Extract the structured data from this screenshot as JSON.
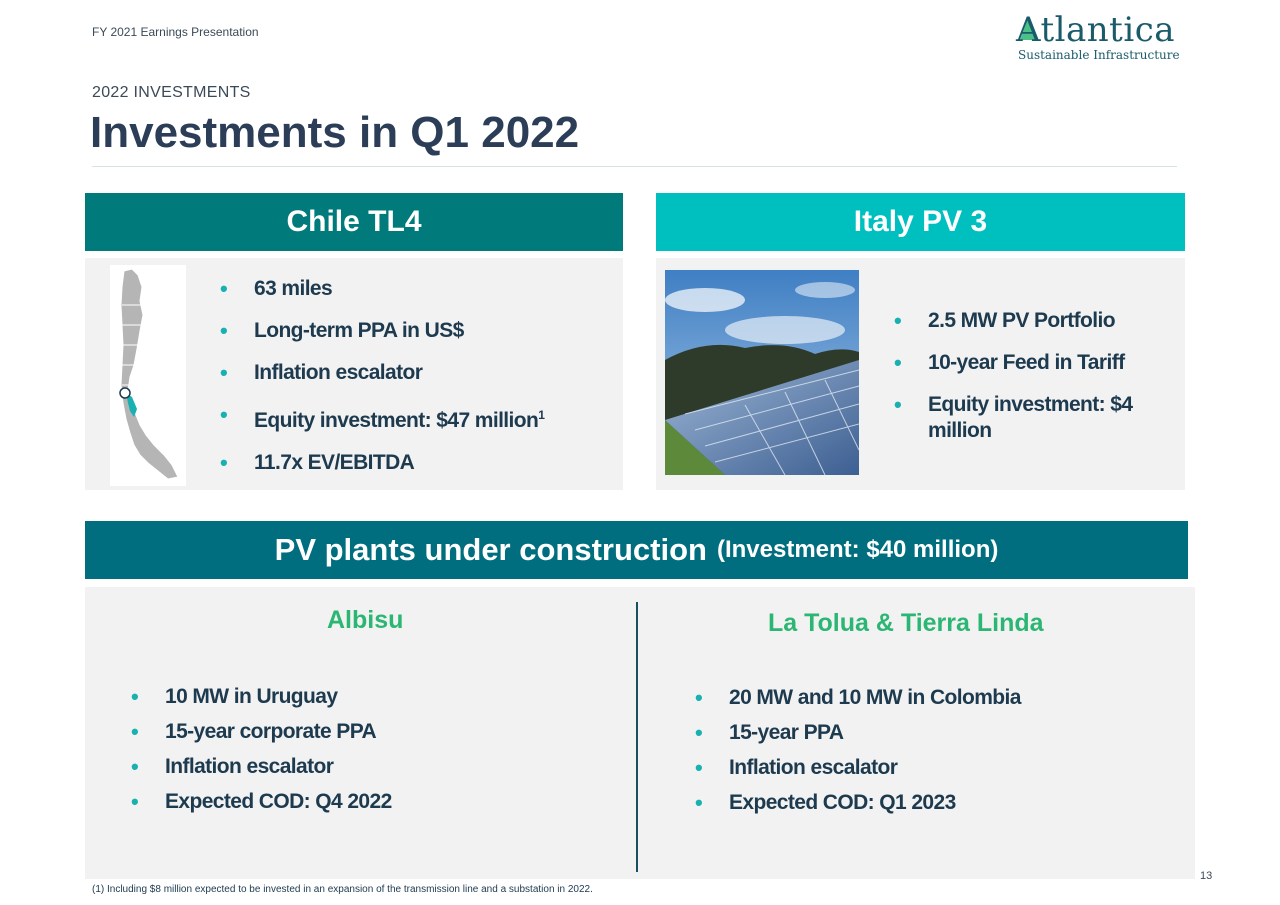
{
  "header": {
    "top_label": "FY 2021 Earnings Presentation",
    "logo_word": "Atlantica",
    "logo_sub": "Sustainable Infrastructure",
    "section_label": "2022 INVESTMENTS",
    "title": "Investments in Q1 2022"
  },
  "chile": {
    "banner": "Chile TL4",
    "bullets": [
      "63 miles",
      "Long-term PPA in US$",
      "Inflation escalator",
      "Equity investment: $47 million",
      "11.7x EV/EBITDA"
    ],
    "footnote_marker": "1"
  },
  "italy": {
    "banner": "Italy PV 3",
    "bullets": [
      "2.5 MW PV Portfolio",
      "10-year Feed in Tariff",
      "Equity investment: $4 million"
    ]
  },
  "pv": {
    "banner": "PV plants under construction",
    "banner_note": "(Investment: $40 million)",
    "albisu": {
      "title": "Albisu",
      "bullets": [
        "10 MW in Uruguay",
        "15-year corporate PPA",
        "Inflation escalator",
        "Expected COD: Q4 2022"
      ]
    },
    "latolua": {
      "title": "La Tolua & Tierra Linda",
      "bullets": [
        "20 MW and 10 MW in Colombia",
        "15-year PPA",
        "Inflation escalator",
        "Expected COD:  Q1 2023"
      ]
    }
  },
  "footer": {
    "page_number": "13",
    "footnote": "(1)  Including $8 million expected to be invested in an expansion of the transmission line  and a substation in 2022."
  },
  "colors": {
    "chile_banner": "#007a7a",
    "italy_banner": "#00bfbf",
    "pv_banner": "#006e7e",
    "accent_green": "#2bb673",
    "bullet_teal": "#18b0b0",
    "title_navy": "#2c3e57"
  }
}
